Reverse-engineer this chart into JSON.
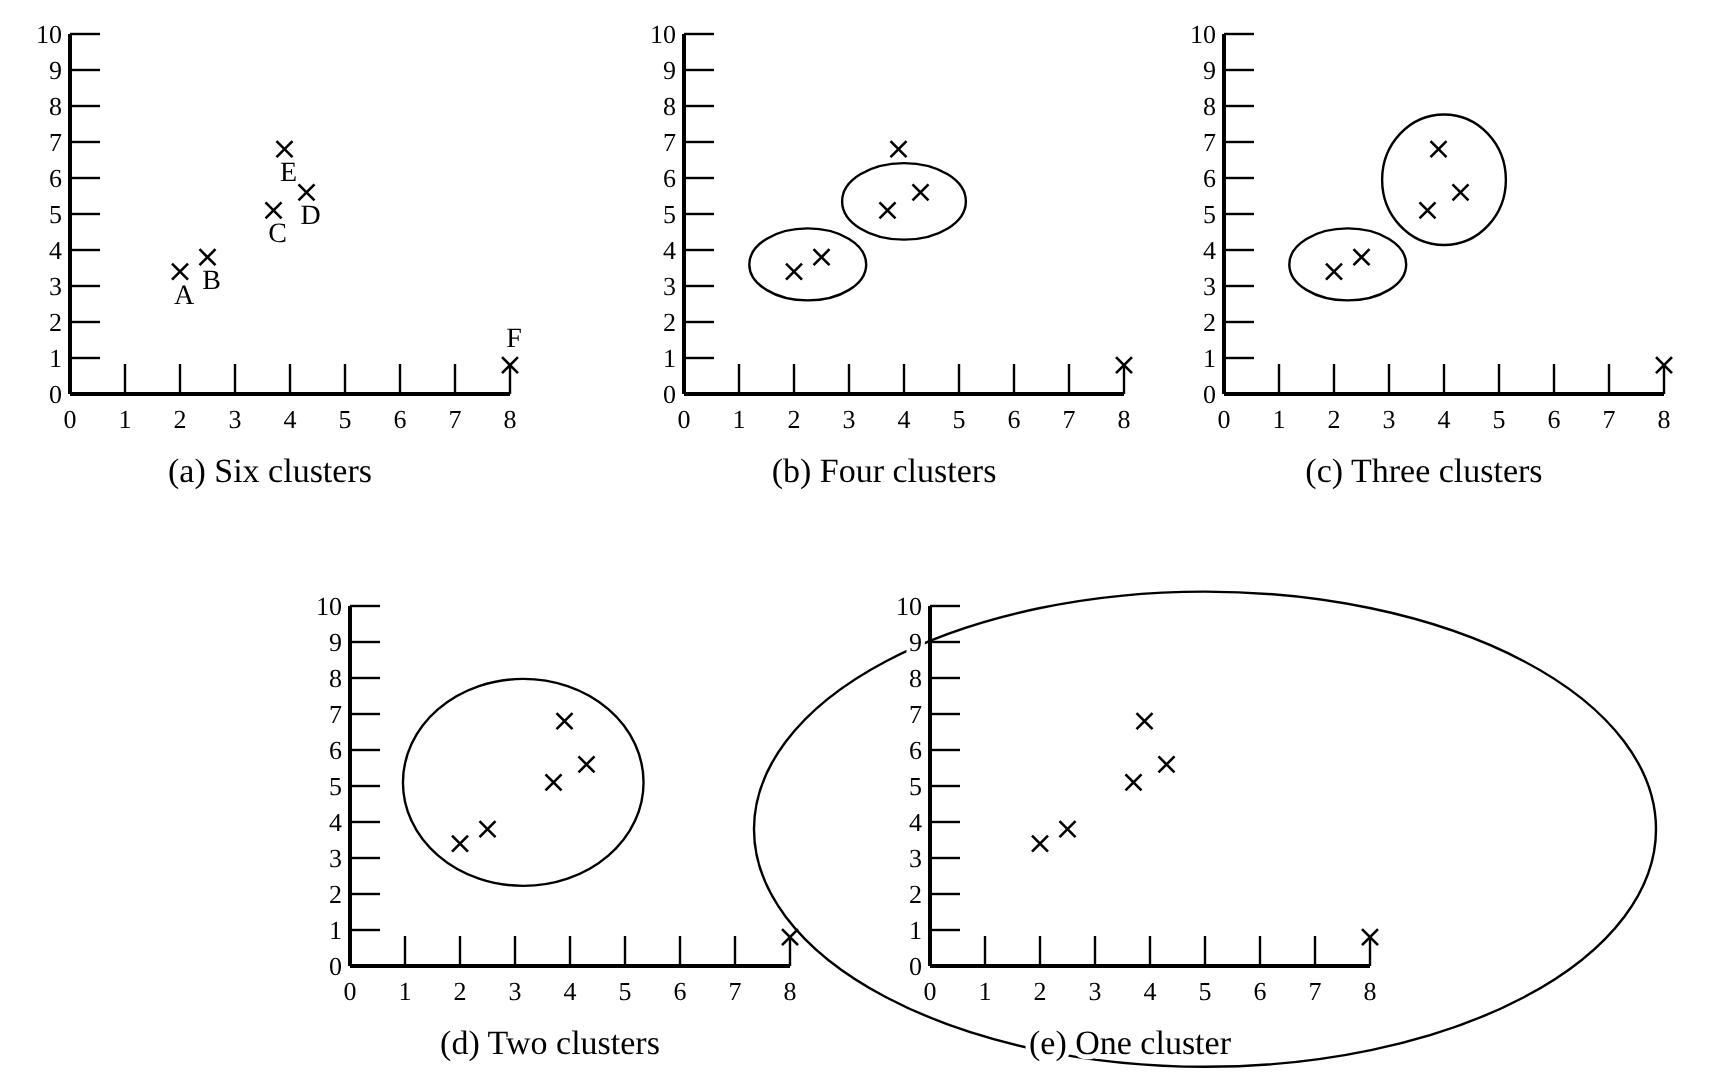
{
  "chart_data": [
    {
      "type": "scatter",
      "title": "(a) Six clusters",
      "xlim": [
        0,
        8
      ],
      "ylim": [
        0,
        10
      ],
      "xticks": [
        0,
        1,
        2,
        3,
        4,
        5,
        6,
        7,
        8
      ],
      "yticks": [
        0,
        1,
        2,
        3,
        4,
        5,
        6,
        7,
        8,
        9,
        10
      ],
      "marker": "cross",
      "series": [
        {
          "color": "#000000",
          "x": [
            2
          ],
          "values": [
            3.4
          ]
        },
        {
          "color": "#000000",
          "x": [
            2.5
          ],
          "values": [
            3.8
          ]
        },
        {
          "color": "#000000",
          "x": [
            3.7
          ],
          "values": [
            5.1
          ]
        },
        {
          "color": "#000000",
          "x": [
            4.3
          ],
          "values": [
            5.6
          ]
        },
        {
          "color": "#000000",
          "x": [
            3.9
          ],
          "values": [
            6.8
          ]
        },
        {
          "color": "#000000",
          "x": [
            8
          ],
          "values": [
            0.8
          ]
        }
      ],
      "annotations": [
        {
          "text": "A",
          "x": 2,
          "y": 3.4
        },
        {
          "text": "B",
          "x": 2.5,
          "y": 3.8
        },
        {
          "text": "C",
          "x": 3.7,
          "y": 5.1
        },
        {
          "text": "D",
          "x": 4.3,
          "y": 5.6
        },
        {
          "text": "E",
          "x": 3.9,
          "y": 6.8
        },
        {
          "text": "F",
          "x": 8,
          "y": 0.8
        }
      ]
    },
    {
      "type": "scatter",
      "title": "(b) Four clusters",
      "xlim": [
        0,
        8
      ],
      "ylim": [
        0,
        10
      ],
      "xticks": [
        0,
        1,
        2,
        3,
        4,
        5,
        6,
        7,
        8
      ],
      "yticks": [
        0,
        1,
        2,
        3,
        4,
        5,
        6,
        7,
        8,
        9,
        10
      ],
      "marker": "cross",
      "series": [
        {
          "color": "#000000",
          "x": [
            2,
            2.5
          ],
          "values": [
            3.4,
            3.8
          ]
        },
        {
          "color": "#000000",
          "x": [
            3.7,
            4.3
          ],
          "values": [
            5.1,
            5.6
          ]
        },
        {
          "color": "#000000",
          "x": [
            3.9
          ],
          "values": [
            6.8
          ]
        },
        {
          "color": "#000000",
          "x": [
            8
          ],
          "values": [
            0.8
          ]
        }
      ]
    },
    {
      "type": "scatter",
      "title": "(c) Three clusters",
      "xlim": [
        0,
        8
      ],
      "ylim": [
        0,
        10
      ],
      "xticks": [
        0,
        1,
        2,
        3,
        4,
        5,
        6,
        7,
        8
      ],
      "yticks": [
        0,
        1,
        2,
        3,
        4,
        5,
        6,
        7,
        8,
        9,
        10
      ],
      "marker": "cross",
      "series": [
        {
          "color": "#000000",
          "x": [
            2,
            2.5
          ],
          "values": [
            3.4,
            3.8
          ]
        },
        {
          "color": "#000000",
          "x": [
            3.7,
            4.3,
            3.9
          ],
          "values": [
            5.1,
            5.6,
            6.8
          ]
        },
        {
          "color": "#000000",
          "x": [
            8
          ],
          "values": [
            0.8
          ]
        }
      ]
    },
    {
      "type": "scatter",
      "title": "(d) Two clusters",
      "xlim": [
        0,
        8
      ],
      "ylim": [
        0,
        10
      ],
      "xticks": [
        0,
        1,
        2,
        3,
        4,
        5,
        6,
        7,
        8
      ],
      "yticks": [
        0,
        1,
        2,
        3,
        4,
        5,
        6,
        7,
        8,
        9,
        10
      ],
      "marker": "cross",
      "series": [
        {
          "color": "#000000",
          "x": [
            2,
            2.5,
            3.7,
            4.3,
            3.9
          ],
          "values": [
            3.4,
            3.8,
            5.1,
            5.6,
            6.8
          ]
        },
        {
          "color": "#000000",
          "x": [
            8
          ],
          "values": [
            0.8
          ]
        }
      ]
    },
    {
      "type": "scatter",
      "title": "(e) One cluster",
      "xlim": [
        0,
        8
      ],
      "ylim": [
        0,
        10
      ],
      "xticks": [
        0,
        1,
        2,
        3,
        4,
        5,
        6,
        7,
        8
      ],
      "yticks": [
        0,
        1,
        2,
        3,
        4,
        5,
        6,
        7,
        8,
        9,
        10
      ],
      "marker": "cross",
      "series": [
        {
          "color": "#000000",
          "x": [
            2,
            2.5,
            3.7,
            4.3,
            3.9,
            8
          ],
          "values": [
            3.4,
            3.8,
            5.1,
            5.6,
            6.8,
            0.8
          ]
        }
      ]
    }
  ]
}
